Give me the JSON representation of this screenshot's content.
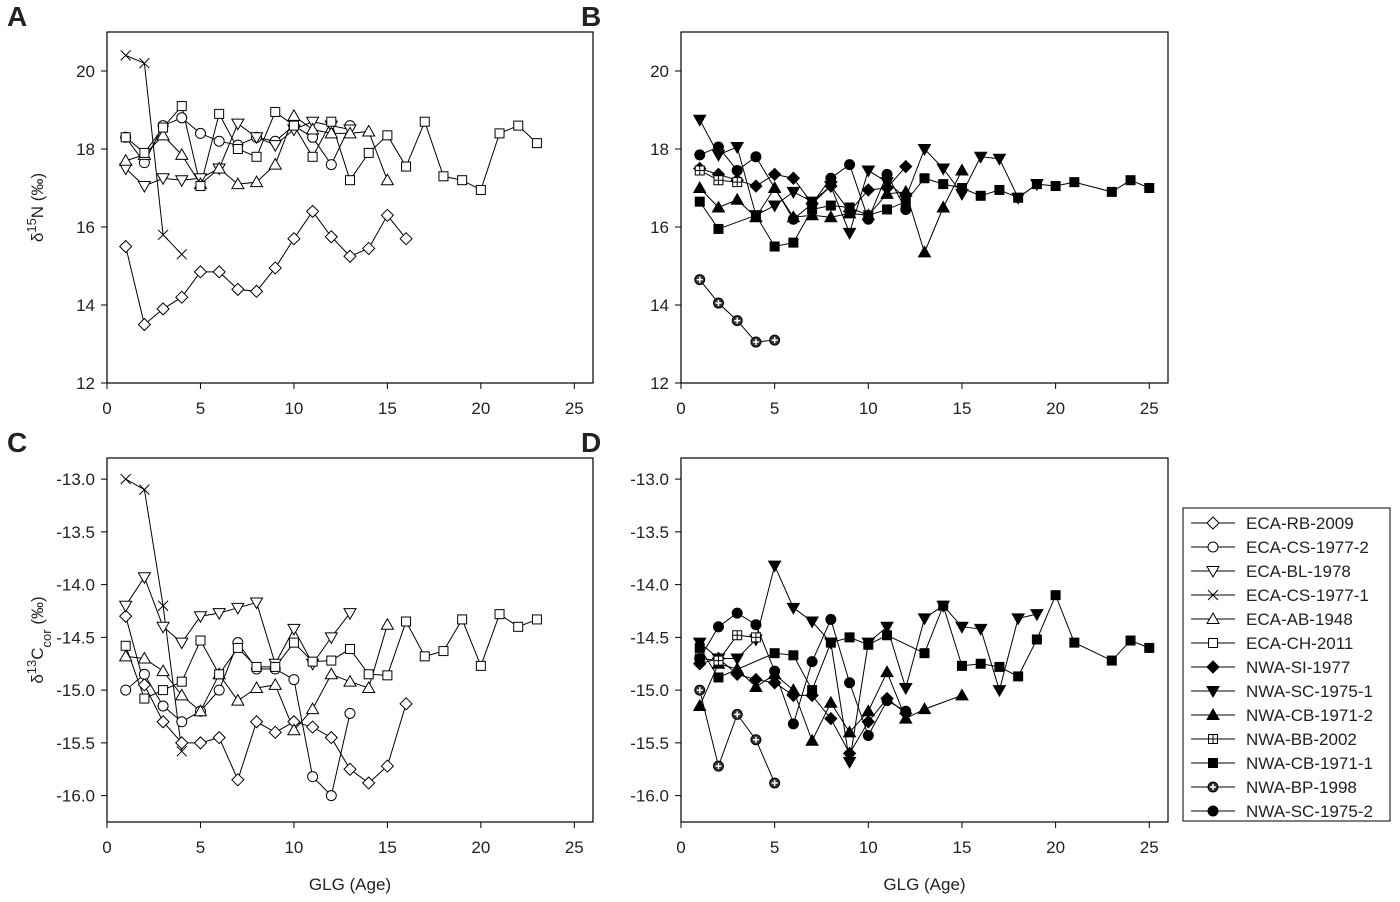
{
  "chart_data": [
    {
      "type": "line",
      "label": "A",
      "ylabel": [
        {
          "text": "δ"
        },
        {
          "text": "15",
          "pos": "sup"
        },
        {
          "text": "N (‰)"
        }
      ],
      "xlim": [
        0,
        26
      ],
      "xticks": [
        0,
        5,
        10,
        15,
        20,
        25
      ],
      "ylim": [
        12,
        21
      ],
      "yticks": [
        12,
        14,
        16,
        18,
        20
      ],
      "series": [
        {
          "marker": "diamond",
          "filled": false,
          "x": [
            1,
            2,
            3,
            4,
            5,
            6,
            7,
            8,
            9,
            10,
            11,
            12,
            13,
            14,
            15,
            16
          ],
          "values": [
            15.5,
            13.5,
            13.9,
            14.2,
            14.85,
            14.85,
            14.4,
            14.35,
            14.95,
            15.7,
            16.4,
            15.75,
            15.25,
            15.45,
            16.3,
            15.7
          ]
        },
        {
          "marker": "circle",
          "filled": false,
          "x": [
            1,
            2,
            3,
            4,
            5,
            6,
            7,
            8,
            9,
            10,
            11,
            12,
            13
          ],
          "values": [
            18.3,
            17.65,
            18.6,
            18.8,
            18.4,
            18.2,
            18.1,
            18.3,
            18.2,
            18.6,
            18.3,
            17.6,
            18.6
          ]
        },
        {
          "marker": "tri-down",
          "filled": false,
          "x": [
            1,
            2,
            3,
            4,
            5,
            6,
            7,
            8,
            9,
            10,
            11,
            12,
            13
          ],
          "values": [
            17.5,
            17.05,
            17.25,
            17.2,
            17.25,
            17.5,
            18.65,
            18.3,
            18.1,
            18.5,
            18.7,
            18.6,
            18.5
          ]
        },
        {
          "marker": "x",
          "filled": false,
          "x": [
            1,
            2,
            3,
            4
          ],
          "values": [
            20.4,
            20.2,
            15.8,
            15.3
          ]
        },
        {
          "marker": "tri-up",
          "filled": false,
          "x": [
            1,
            2,
            3,
            4,
            5,
            6,
            7,
            8,
            9,
            10,
            11,
            12,
            13,
            14,
            15
          ],
          "values": [
            17.7,
            17.85,
            18.35,
            17.85,
            17.1,
            17.5,
            17.1,
            17.15,
            17.6,
            18.85,
            18.5,
            18.4,
            18.4,
            18.45,
            17.2
          ]
        },
        {
          "marker": "square",
          "filled": false,
          "x": [
            1,
            2,
            3,
            4,
            5,
            6,
            7,
            8,
            9,
            10,
            11,
            12,
            13,
            14,
            15,
            16,
            17,
            18,
            19,
            20,
            21,
            22,
            23
          ],
          "values": [
            18.3,
            17.9,
            18.55,
            19.1,
            17.05,
            18.9,
            18.0,
            17.8,
            18.95,
            18.6,
            17.8,
            18.7,
            17.2,
            17.9,
            18.35,
            17.55,
            18.7,
            17.3,
            17.2,
            16.95,
            18.4,
            18.6,
            18.15
          ]
        }
      ]
    },
    {
      "type": "line",
      "label": "B",
      "xlim": [
        0,
        26
      ],
      "xticks": [
        0,
        5,
        10,
        15,
        20,
        25
      ],
      "ylim": [
        12,
        21
      ],
      "yticks": [
        12,
        14,
        16,
        18,
        20
      ],
      "series": [
        {
          "marker": "diamond",
          "filled": true,
          "x": [
            1,
            2,
            3,
            4,
            5,
            6,
            7,
            8,
            9,
            10,
            11,
            12
          ],
          "values": [
            17.5,
            17.35,
            17.2,
            17.05,
            17.35,
            17.25,
            16.6,
            17.05,
            16.4,
            16.95,
            17.0,
            17.55
          ]
        },
        {
          "marker": "tri-down",
          "filled": true,
          "x": [
            1,
            2,
            3,
            4,
            5,
            6,
            7,
            8,
            9,
            10,
            11,
            12,
            13,
            14,
            15,
            16,
            17,
            18,
            19
          ],
          "values": [
            18.75,
            17.85,
            18.05,
            16.3,
            16.55,
            16.9,
            16.65,
            17.05,
            15.85,
            17.45,
            17.15,
            16.75,
            18.0,
            17.5,
            16.85,
            17.8,
            17.75,
            16.75,
            17.1
          ]
        },
        {
          "marker": "tri-up",
          "filled": true,
          "x": [
            1,
            2,
            3,
            4,
            5,
            6,
            7,
            8,
            9,
            10,
            11,
            12,
            13,
            14,
            15
          ],
          "values": [
            17.0,
            16.5,
            16.7,
            16.25,
            17.0,
            16.25,
            16.3,
            16.25,
            16.35,
            16.3,
            16.85,
            16.9,
            15.35,
            16.5,
            17.45
          ]
        },
        {
          "marker": "square-cross",
          "filled": false,
          "x": [
            1,
            2,
            3
          ],
          "values": [
            17.45,
            17.2,
            17.15
          ]
        },
        {
          "marker": "square",
          "filled": true,
          "x": [
            1,
            2,
            4,
            5,
            6,
            7,
            8,
            9,
            10,
            11,
            12,
            13,
            14,
            15,
            16,
            17,
            18,
            19,
            20,
            21,
            23,
            24,
            25
          ],
          "values": [
            16.65,
            15.95,
            16.3,
            15.5,
            15.6,
            16.45,
            16.55,
            16.5,
            16.3,
            16.45,
            16.65,
            17.25,
            17.1,
            17.0,
            16.8,
            16.95,
            16.75,
            17.1,
            17.05,
            17.15,
            16.9,
            17.2,
            17.0
          ]
        },
        {
          "marker": "circle-cross",
          "filled": true,
          "x": [
            1,
            2,
            3,
            4,
            5
          ],
          "values": [
            14.65,
            14.05,
            13.6,
            13.05,
            13.1
          ]
        },
        {
          "marker": "circle",
          "filled": true,
          "x": [
            1,
            2,
            3,
            4,
            6,
            7,
            8,
            9,
            10,
            11,
            12
          ],
          "values": [
            17.85,
            18.05,
            17.45,
            17.8,
            16.2,
            16.6,
            17.25,
            17.6,
            16.2,
            17.35,
            16.45
          ]
        }
      ]
    },
    {
      "type": "line",
      "label": "C",
      "ylabel": [
        {
          "text": "δ"
        },
        {
          "text": "13",
          "pos": "sup"
        },
        {
          "text": "C"
        },
        {
          "text": "cor",
          "pos": "sub"
        },
        {
          "text": " (‰)"
        }
      ],
      "xlabel": "GLG (Age)",
      "xlim": [
        0,
        26
      ],
      "xticks": [
        0,
        5,
        10,
        15,
        20,
        25
      ],
      "ylim": [
        -16.25,
        -12.8
      ],
      "yticks": [
        {
          "value": -16,
          "label": "-16.0"
        },
        -15.5,
        {
          "value": -15,
          "label": "-15.0"
        },
        -14.5,
        {
          "value": -14,
          "label": "-14.0"
        },
        -13.5,
        {
          "value": -13,
          "label": "-13.0"
        }
      ],
      "series": [
        {
          "name": "ECA-RB-2009",
          "marker": "diamond",
          "filled": false,
          "x": [
            1,
            2,
            3,
            4,
            5,
            6,
            7,
            8,
            9,
            10,
            11,
            12,
            13,
            14,
            15,
            16
          ],
          "values": [
            -14.3,
            -14.95,
            -15.3,
            -15.5,
            -15.5,
            -15.45,
            -15.85,
            -15.3,
            -15.4,
            -15.3,
            -15.35,
            -15.45,
            -15.75,
            -15.88,
            -15.72,
            -15.13
          ]
        },
        {
          "name": "ECA-CS-1977-2",
          "marker": "circle",
          "filled": false,
          "x": [
            1,
            2,
            3,
            4,
            5,
            6,
            7,
            8,
            9,
            10,
            11,
            12,
            13
          ],
          "values": [
            -15.0,
            -14.85,
            -15.15,
            -15.3,
            -15.2,
            -15.0,
            -14.55,
            -14.8,
            -14.8,
            -14.9,
            -15.82,
            -16.0,
            -15.22
          ]
        },
        {
          "name": "ECA-BL-1978",
          "marker": "tri-down",
          "filled": false,
          "x": [
            1,
            2,
            3,
            4,
            5,
            6,
            7,
            8,
            9,
            10,
            11,
            12,
            13
          ],
          "values": [
            -14.2,
            -13.93,
            -14.4,
            -14.55,
            -14.3,
            -14.27,
            -14.22,
            -14.17,
            -14.75,
            -14.42,
            -14.75,
            -14.5,
            -14.27
          ]
        },
        {
          "name": "ECA-CS-1977-1",
          "marker": "x",
          "filled": false,
          "x": [
            1,
            2,
            3,
            4
          ],
          "values": [
            -13.0,
            -13.1,
            -14.2,
            -15.58
          ]
        },
        {
          "name": "ECA-AB-1948",
          "marker": "tri-up",
          "filled": false,
          "x": [
            1,
            2,
            3,
            4,
            5,
            6,
            7,
            8,
            9,
            10,
            11,
            12,
            13,
            14,
            15
          ],
          "values": [
            -14.68,
            -14.7,
            -14.82,
            -15.05,
            -15.2,
            -14.85,
            -15.1,
            -14.98,
            -14.95,
            -15.38,
            -15.18,
            -14.85,
            -14.92,
            -14.98,
            -14.38
          ]
        },
        {
          "name": "ECA-CH-2011",
          "marker": "square",
          "filled": false,
          "x": [
            1,
            2,
            3,
            4,
            5,
            6,
            7,
            8,
            9,
            10,
            11,
            12,
            13,
            14,
            15,
            16,
            17,
            18,
            19,
            20,
            21,
            22,
            23
          ],
          "values": [
            -14.58,
            -15.08,
            -15.0,
            -14.92,
            -14.53,
            -14.85,
            -14.6,
            -14.78,
            -14.78,
            -14.55,
            -14.73,
            -14.72,
            -14.61,
            -14.85,
            -14.86,
            -14.35,
            -14.68,
            -14.63,
            -14.33,
            -14.77,
            -14.28,
            -14.4,
            -14.33
          ]
        }
      ]
    },
    {
      "type": "line",
      "label": "D",
      "xlabel": "GLG (Age)",
      "xlim": [
        0,
        26
      ],
      "xticks": [
        0,
        5,
        10,
        15,
        20,
        25
      ],
      "ylim": [
        -16.25,
        -12.8
      ],
      "yticks": [
        {
          "value": -16,
          "label": "-16.0"
        },
        -15.5,
        {
          "value": -15,
          "label": "-15.0"
        },
        -14.5,
        {
          "value": -14,
          "label": "-14.0"
        },
        -13.5,
        {
          "value": -13,
          "label": "-13.0"
        }
      ],
      "series": [
        {
          "name": "NWA-SI-1977",
          "marker": "diamond",
          "filled": true,
          "x": [
            1,
            2,
            3,
            4,
            5,
            6,
            7,
            8,
            9,
            10,
            11,
            12
          ],
          "values": [
            -14.75,
            -14.7,
            -14.85,
            -14.9,
            -14.93,
            -15.05,
            -15.05,
            -15.27,
            -15.6,
            -15.3,
            -15.08,
            -15.22
          ]
        },
        {
          "name": "NWA-SC-1975-1",
          "marker": "tri-down",
          "filled": true,
          "x": [
            1,
            2,
            3,
            4,
            5,
            6,
            7,
            8,
            9,
            10,
            11,
            12,
            13,
            14,
            15,
            16,
            17,
            18,
            19
          ],
          "values": [
            -14.55,
            -14.7,
            -14.7,
            -14.52,
            -13.82,
            -14.22,
            -14.35,
            -14.55,
            -15.68,
            -14.55,
            -14.4,
            -14.98,
            -14.32,
            -14.2,
            -14.4,
            -14.42,
            -15.0,
            -14.32,
            -14.28
          ]
        },
        {
          "name": "NWA-CB-1971-2",
          "marker": "tri-up",
          "filled": true,
          "x": [
            1,
            2,
            3,
            4,
            5,
            6,
            7,
            8,
            9,
            10,
            11,
            12,
            13,
            15
          ],
          "values": [
            -15.15,
            -14.75,
            -14.8,
            -14.97,
            -14.85,
            -15.0,
            -15.48,
            -15.12,
            -15.4,
            -15.2,
            -14.83,
            -15.27,
            -15.18,
            -15.05
          ]
        },
        {
          "name": "NWA-BB-2002",
          "marker": "square-cross",
          "filled": false,
          "x": [
            1,
            2,
            3,
            4
          ],
          "values": [
            -14.7,
            -14.72,
            -14.48,
            -14.5
          ]
        },
        {
          "name": "NWA-CB-1971-1",
          "marker": "square",
          "filled": true,
          "x": [
            1,
            2,
            5,
            6,
            7,
            8,
            9,
            10,
            11,
            13,
            14,
            15,
            16,
            17,
            18,
            19,
            20,
            21,
            23,
            24,
            25
          ],
          "values": [
            -14.6,
            -14.88,
            -14.65,
            -14.67,
            -15.0,
            -14.55,
            -14.5,
            -14.57,
            -14.48,
            -14.65,
            -14.2,
            -14.77,
            -14.75,
            -14.78,
            -14.87,
            -14.52,
            -14.1,
            -14.55,
            -14.72,
            -14.53,
            -14.6
          ]
        },
        {
          "name": "NWA-BP-1998",
          "marker": "circle-cross",
          "filled": true,
          "x": [
            1,
            2,
            3,
            4,
            5
          ],
          "values": [
            -15.0,
            -15.72,
            -15.23,
            -15.47,
            -15.88
          ]
        },
        {
          "name": "NWA-SC-1975-2",
          "marker": "circle",
          "filled": true,
          "x": [
            1,
            2,
            3,
            4,
            5,
            6,
            7,
            8,
            9,
            10,
            11,
            12
          ],
          "values": [
            -14.7,
            -14.4,
            -14.27,
            -14.38,
            -14.82,
            -15.32,
            -14.73,
            -14.33,
            -14.93,
            -15.43,
            -15.1,
            -15.2
          ]
        }
      ]
    }
  ]
}
